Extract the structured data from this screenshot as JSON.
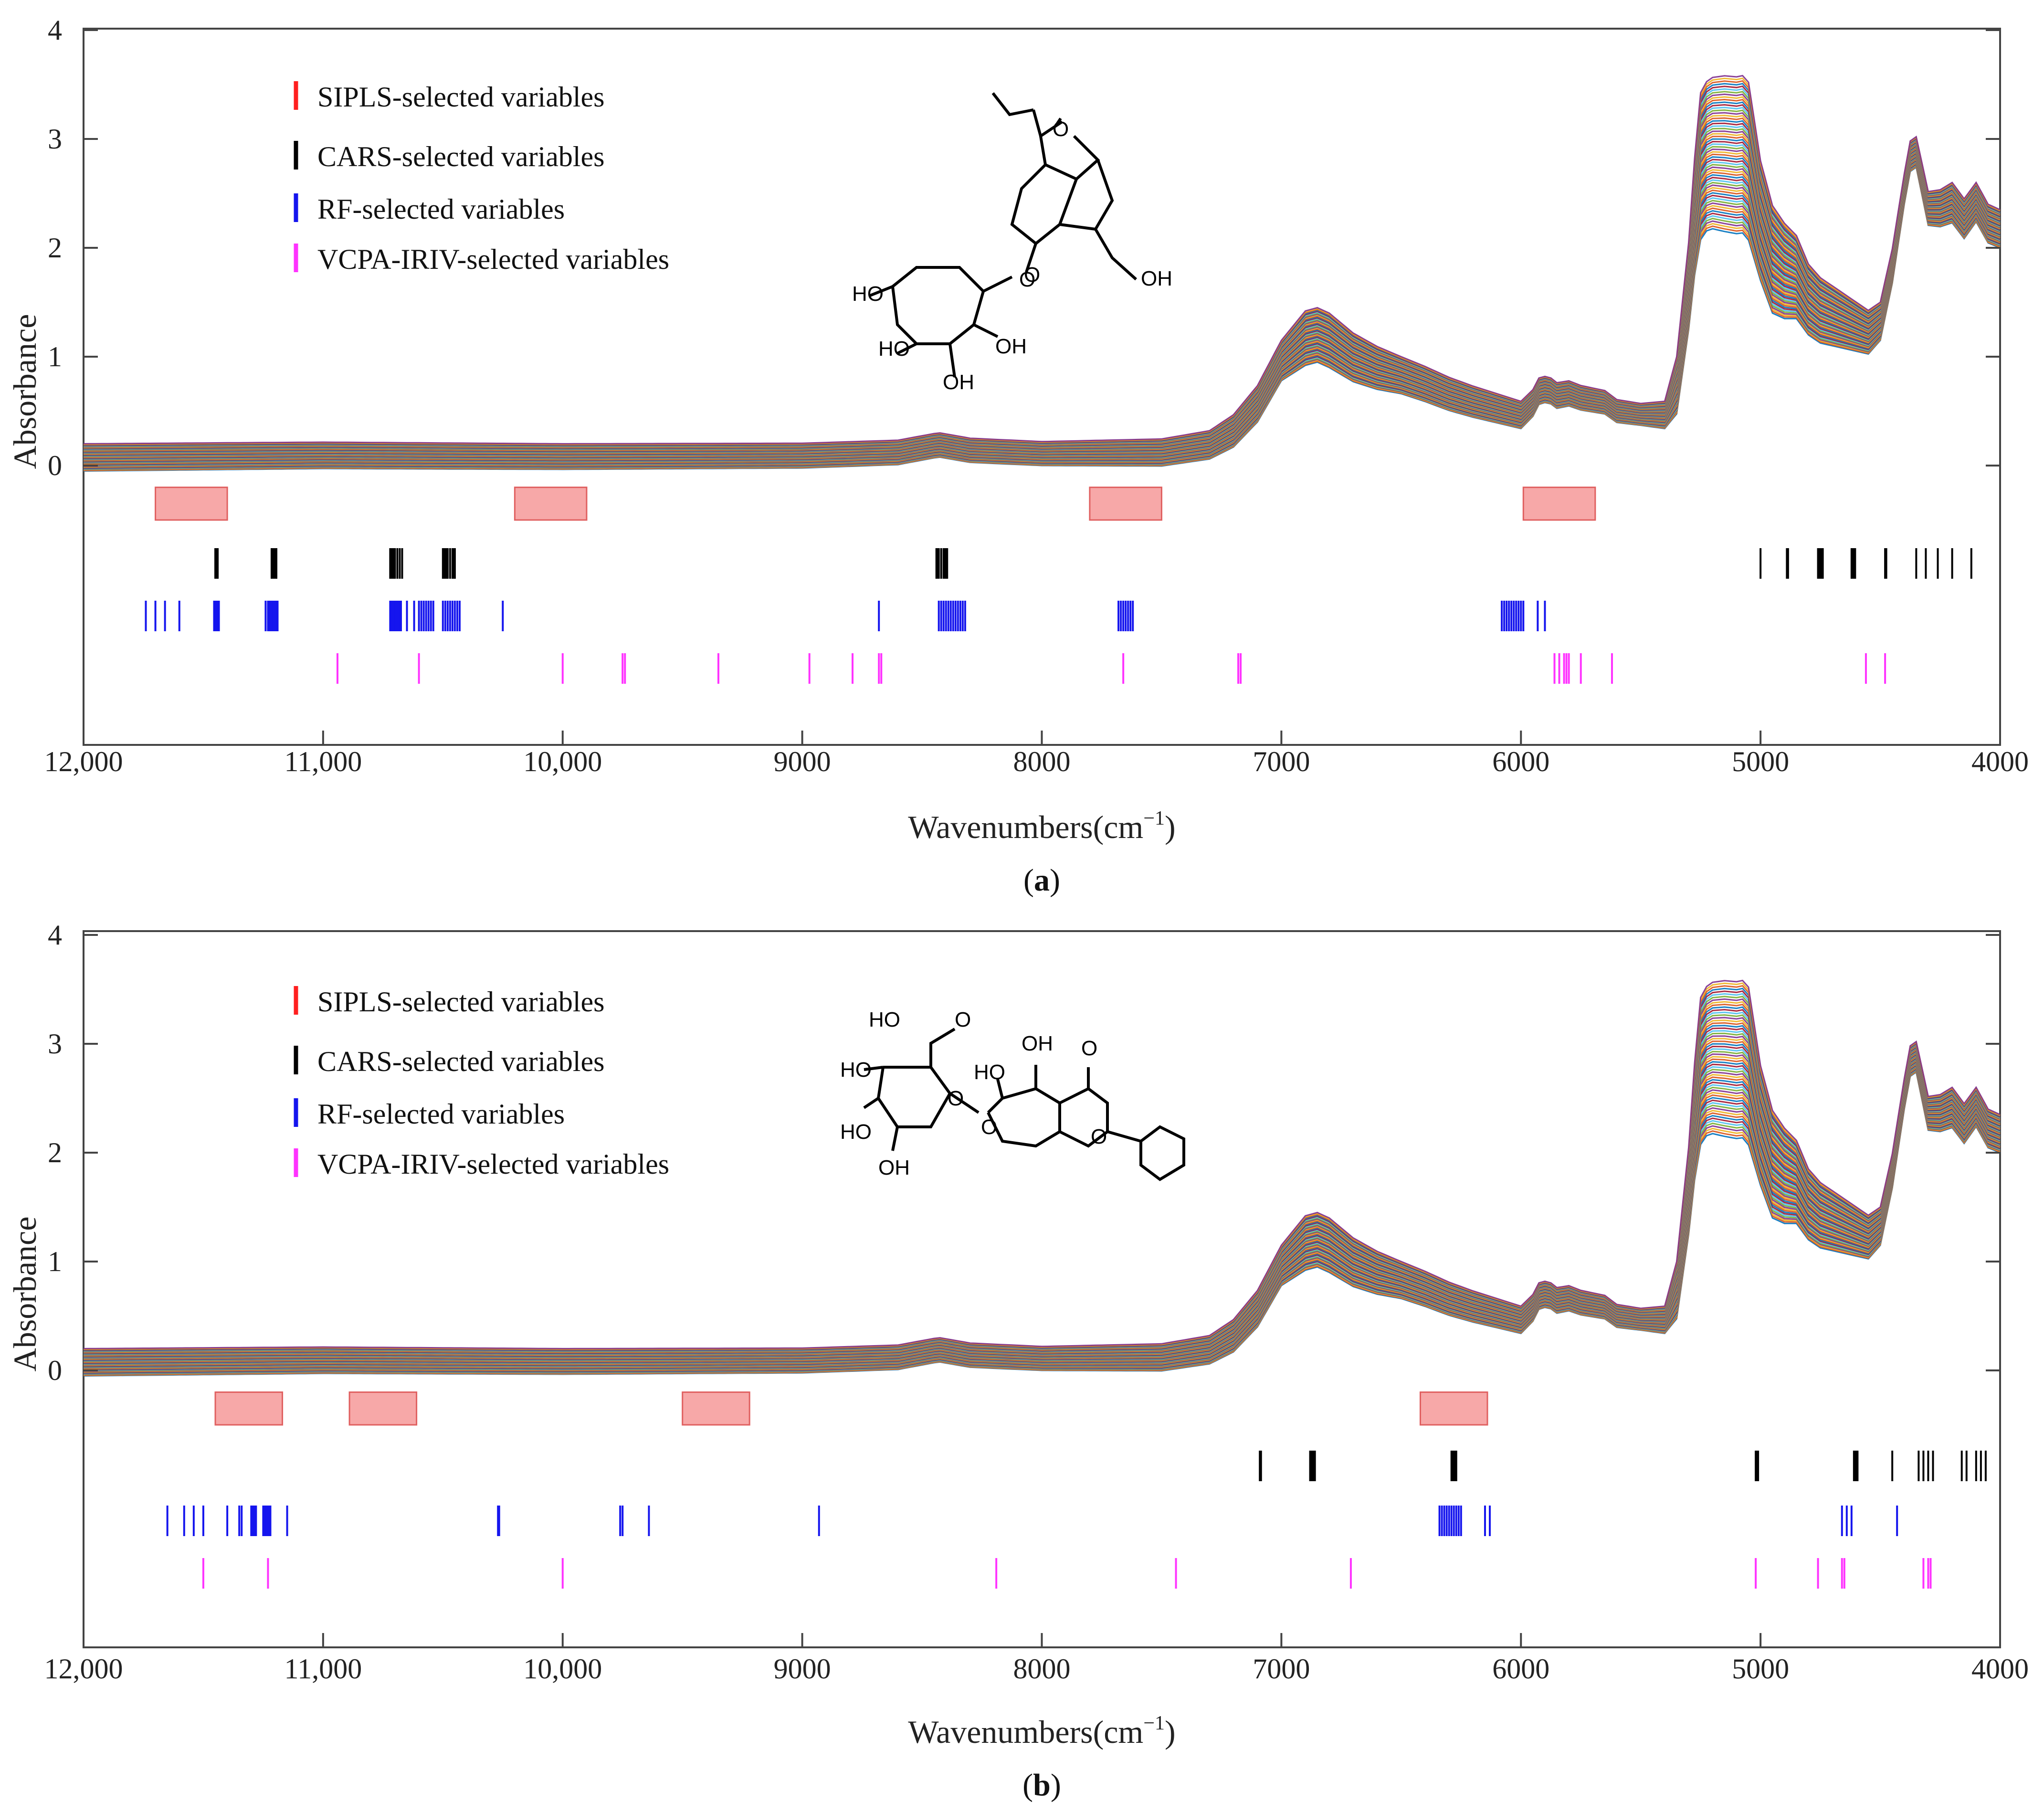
{
  "chart_data": [
    {
      "panel": "a",
      "panel_label_prefix": "(",
      "panel_label_letter": "a",
      "panel_label_suffix": ")",
      "type": "line",
      "title": "",
      "xlabel": "Wavenumbers(cm",
      "xlabel_sup": "−1",
      "xlabel_close": ")",
      "ylabel": "Absorbance",
      "xlim": [
        12000,
        4000
      ],
      "ylim": [
        -2.5,
        4
      ],
      "x_ticks": [
        12000,
        11000,
        10000,
        9000,
        8000,
        7000,
        6000,
        5000,
        4000
      ],
      "x_tick_labels": [
        "12,000",
        "11,000",
        "10,000",
        "9000",
        "8000",
        "7000",
        "6000",
        "5000",
        "4000"
      ],
      "y_ticks": [
        0,
        1,
        2,
        3,
        4
      ],
      "y_tick_labels": [
        "0",
        "1",
        "2",
        "3",
        "4"
      ],
      "legend": [
        {
          "label": "SIPLS-selected variables",
          "color": "#ff2020"
        },
        {
          "label": "CARS-selected variables",
          "color": "#000000"
        },
        {
          "label": "RF-selected variables",
          "color": "#1515ee"
        },
        {
          "label": "VCPA-IRIV-selected variables",
          "color": "#ff33ff"
        }
      ],
      "spectra_count": 60,
      "mean_spectrum": {
        "x": [
          12000,
          11000,
          10000,
          9000,
          8600,
          8430,
          8300,
          8000,
          7500,
          7300,
          7200,
          7100,
          7000,
          6900,
          6850,
          6800,
          6700,
          6600,
          6500,
          6400,
          6300,
          6200,
          6100,
          6000,
          5950,
          5920,
          5880,
          5850,
          5800,
          5750,
          5700,
          5650,
          5600,
          5500,
          5400,
          5350,
          5300,
          5260,
          5240,
          5200,
          5150,
          5100,
          5080,
          5050,
          5000,
          4950,
          4900,
          4850,
          4800,
          4750,
          4700,
          4650,
          4600,
          4550,
          4500,
          4450,
          4400,
          4370,
          4350,
          4300,
          4250,
          4200,
          4150,
          4100,
          4050,
          4000
        ],
        "y": [
          0.0,
          0.02,
          0.01,
          0.02,
          0.05,
          0.12,
          0.07,
          0.04,
          0.05,
          0.12,
          0.25,
          0.5,
          0.9,
          1.12,
          1.15,
          1.1,
          0.95,
          0.86,
          0.8,
          0.72,
          0.63,
          0.56,
          0.5,
          0.44,
          0.55,
          0.68,
          0.67,
          0.62,
          0.64,
          0.6,
          0.58,
          0.56,
          0.48,
          0.45,
          0.44,
          0.7,
          1.6,
          2.6,
          2.75,
          2.8,
          2.8,
          2.78,
          2.8,
          2.72,
          2.2,
          1.85,
          1.75,
          1.7,
          1.5,
          1.4,
          1.35,
          1.3,
          1.25,
          1.2,
          1.3,
          1.8,
          2.5,
          2.85,
          2.82,
          2.3,
          2.3,
          2.35,
          2.2,
          2.35,
          2.15,
          2.1
        ]
      },
      "spread_profile": {
        "x": [
          12000,
          8000,
          7300,
          7000,
          6900,
          6800,
          6500,
          6000,
          5500,
          5400,
          5300,
          5250,
          5150,
          5050,
          5000,
          4800,
          4600,
          4500,
          4400,
          4350,
          4200,
          4000
        ],
        "low": [
          -0.05,
          -0.04,
          -0.06,
          -0.12,
          -0.2,
          -0.2,
          -0.14,
          -0.1,
          -0.08,
          -0.1,
          -0.35,
          -0.6,
          -0.65,
          -0.65,
          -0.5,
          -0.3,
          -0.2,
          -0.15,
          -0.1,
          -0.08,
          -0.12,
          -0.1
        ],
        "high": [
          0.2,
          0.18,
          0.2,
          0.25,
          0.3,
          0.3,
          0.2,
          0.15,
          0.12,
          0.15,
          0.45,
          0.75,
          0.78,
          0.8,
          0.6,
          0.35,
          0.25,
          0.2,
          0.18,
          0.2,
          0.25,
          0.25
        ]
      },
      "sipls_intervals": [
        [
          11700,
          11400
        ],
        [
          10200,
          9900
        ],
        [
          7800,
          7500
        ],
        [
          5990,
          5690
        ]
      ],
      "cars_variables": [
        11450,
        11445,
        11440,
        11215,
        11210,
        11205,
        11200,
        11195,
        10720,
        10715,
        10710,
        10705,
        10700,
        10690,
        10680,
        10670,
        10500,
        10495,
        10490,
        10485,
        10480,
        10470,
        10460,
        10455,
        10450,
        8440,
        8435,
        8430,
        8420,
        8410,
        8405,
        8400,
        8395,
        5000,
        4890,
        4885,
        4760,
        4755,
        4750,
        4745,
        4740,
        4620,
        4615,
        4610,
        4605,
        4480,
        4475,
        4350,
        4310,
        4260,
        4200,
        4120
      ],
      "rf_variables": [
        11740,
        11700,
        11660,
        11600,
        11455,
        11450,
        11445,
        11440,
        11435,
        11240,
        11230,
        11225,
        11220,
        11215,
        11210,
        11205,
        11200,
        11195,
        11190,
        10720,
        10715,
        10710,
        10705,
        10700,
        10695,
        10690,
        10685,
        10680,
        10675,
        10650,
        10620,
        10600,
        10590,
        10580,
        10570,
        10560,
        10550,
        10540,
        10500,
        10490,
        10480,
        10470,
        10460,
        10450,
        10440,
        10430,
        10250,
        8680,
        8430,
        8420,
        8410,
        8400,
        8390,
        8380,
        8370,
        8360,
        8350,
        8340,
        8330,
        8320,
        7680,
        7670,
        7660,
        7650,
        7640,
        7630,
        7620,
        6080,
        6070,
        6060,
        6050,
        6040,
        6030,
        6020,
        6010,
        6000,
        5990,
        5930,
        5900
      ],
      "vcpa_iriv_variables": [
        10940,
        10600,
        10000,
        9750,
        9740,
        9350,
        8970,
        8790,
        8680,
        8670,
        7660,
        7180,
        7170,
        5860,
        5840,
        5820,
        5810,
        5800,
        5750,
        5620,
        4560,
        4480
      ]
    },
    {
      "panel": "b",
      "panel_label_prefix": "(",
      "panel_label_letter": "b",
      "panel_label_suffix": ")",
      "type": "line",
      "title": "",
      "xlabel": "Wavenumbers(cm",
      "xlabel_sup": "−1",
      "xlabel_close": ")",
      "ylabel": "Absorbance",
      "xlim": [
        12000,
        4000
      ],
      "ylim": [
        -2.5,
        4
      ],
      "x_ticks": [
        12000,
        11000,
        10000,
        9000,
        8000,
        7000,
        6000,
        5000,
        4000
      ],
      "x_tick_labels": [
        "12,000",
        "11,000",
        "10,000",
        "9000",
        "8000",
        "7000",
        "6000",
        "5000",
        "4000"
      ],
      "y_ticks": [
        0,
        1,
        2,
        3,
        4
      ],
      "y_tick_labels": [
        "0",
        "1",
        "2",
        "3",
        "4"
      ],
      "legend": [
        {
          "label": "SIPLS-selected variables",
          "color": "#ff2020"
        },
        {
          "label": "CARS-selected variables",
          "color": "#000000"
        },
        {
          "label": "RF-selected variables",
          "color": "#1515ee"
        },
        {
          "label": "VCPA-IRIV-selected variables",
          "color": "#ff33ff"
        }
      ],
      "spectra_count": 60,
      "mean_spectrum": {
        "x": [
          12000,
          11000,
          10000,
          9000,
          8600,
          8430,
          8300,
          8000,
          7500,
          7300,
          7200,
          7100,
          7000,
          6900,
          6850,
          6800,
          6700,
          6600,
          6500,
          6400,
          6300,
          6200,
          6100,
          6000,
          5950,
          5920,
          5880,
          5850,
          5800,
          5750,
          5700,
          5650,
          5600,
          5500,
          5400,
          5350,
          5300,
          5260,
          5240,
          5200,
          5150,
          5100,
          5080,
          5050,
          5000,
          4950,
          4900,
          4850,
          4800,
          4750,
          4700,
          4650,
          4600,
          4550,
          4500,
          4450,
          4400,
          4370,
          4350,
          4300,
          4250,
          4200,
          4150,
          4100,
          4050,
          4000
        ],
        "y": [
          0.0,
          0.02,
          0.01,
          0.02,
          0.05,
          0.12,
          0.07,
          0.04,
          0.05,
          0.12,
          0.25,
          0.5,
          0.9,
          1.12,
          1.15,
          1.1,
          0.95,
          0.86,
          0.8,
          0.72,
          0.63,
          0.56,
          0.5,
          0.44,
          0.55,
          0.68,
          0.67,
          0.62,
          0.64,
          0.6,
          0.58,
          0.56,
          0.48,
          0.45,
          0.44,
          0.7,
          1.6,
          2.6,
          2.75,
          2.8,
          2.8,
          2.78,
          2.8,
          2.72,
          2.2,
          1.85,
          1.75,
          1.7,
          1.5,
          1.4,
          1.35,
          1.3,
          1.25,
          1.2,
          1.3,
          1.8,
          2.5,
          2.85,
          2.82,
          2.3,
          2.3,
          2.35,
          2.2,
          2.35,
          2.15,
          2.1
        ]
      },
      "spread_profile": {
        "x": [
          12000,
          8000,
          7300,
          7000,
          6900,
          6800,
          6500,
          6000,
          5500,
          5400,
          5300,
          5250,
          5150,
          5050,
          5000,
          4800,
          4600,
          4500,
          4400,
          4350,
          4200,
          4000
        ],
        "low": [
          -0.05,
          -0.04,
          -0.06,
          -0.12,
          -0.2,
          -0.2,
          -0.14,
          -0.1,
          -0.08,
          -0.1,
          -0.35,
          -0.6,
          -0.65,
          -0.65,
          -0.5,
          -0.3,
          -0.2,
          -0.15,
          -0.1,
          -0.08,
          -0.12,
          -0.1
        ],
        "high": [
          0.2,
          0.18,
          0.2,
          0.25,
          0.3,
          0.3,
          0.2,
          0.15,
          0.12,
          0.15,
          0.45,
          0.75,
          0.78,
          0.8,
          0.6,
          0.35,
          0.25,
          0.2,
          0.18,
          0.2,
          0.25,
          0.25
        ]
      },
      "sipls_intervals": [
        [
          11450,
          11170
        ],
        [
          10890,
          10610
        ],
        [
          9500,
          9220
        ],
        [
          6420,
          6140
        ]
      ],
      "cars_variables": [
        7090,
        7085,
        6880,
        6875,
        6870,
        6865,
        6860,
        6290,
        6285,
        6280,
        6275,
        6270,
        5020,
        5015,
        5010,
        4610,
        4605,
        4600,
        4595,
        4450,
        4340,
        4320,
        4300,
        4280,
        4160,
        4140,
        4100,
        4080,
        4060
      ],
      "rf_variables": [
        11650,
        11580,
        11540,
        11500,
        11400,
        11350,
        11340,
        11300,
        11295,
        11290,
        11285,
        11280,
        11250,
        11245,
        11240,
        11235,
        11230,
        11225,
        11220,
        11150,
        10270,
        10265,
        9760,
        9750,
        9640,
        8930,
        6340,
        6330,
        6320,
        6310,
        6300,
        6290,
        6280,
        6270,
        6260,
        6250,
        6150,
        6130,
        4660,
        4640,
        4620,
        4430
      ],
      "vcpa_iriv_variables": [
        11500,
        11230,
        10000,
        8190,
        7440,
        6710,
        5020,
        4760,
        4660,
        4650,
        4320,
        4300,
        4290
      ]
    }
  ]
}
